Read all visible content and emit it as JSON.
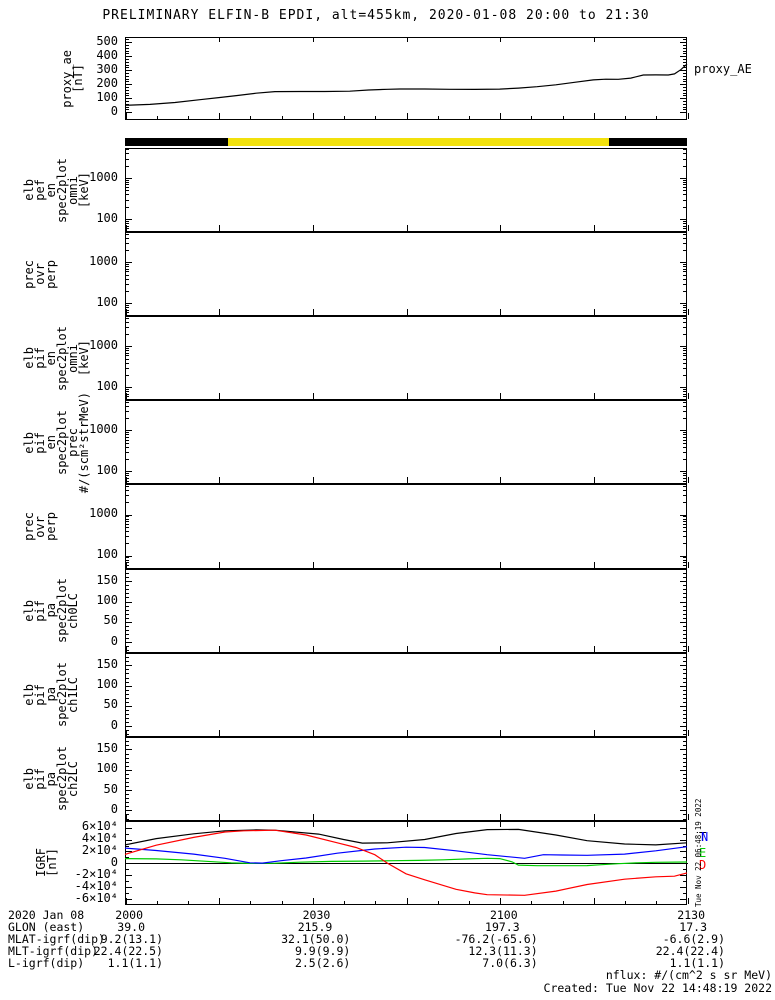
{
  "title": "PRELIMINARY ELFIN-B EPDI, alt=455km, 2020-01-08 20:00 to 21:30",
  "proxy": {
    "right_label": "proxy_AE",
    "axis_label": [
      "proxy_ae",
      "[nT]"
    ],
    "yticks": [
      "500",
      "400",
      "300",
      "200",
      "100",
      "0"
    ]
  },
  "status_bar": {
    "segments": [
      {
        "color": "#000000",
        "from": 0.0,
        "to": 0.183
      },
      {
        "color": "#f2e10c",
        "from": 0.183,
        "to": 0.861
      },
      {
        "color": "#000000",
        "from": 0.861,
        "to": 1.0
      }
    ]
  },
  "spectro_panels": [
    {
      "labels": [
        "elb",
        "pef",
        "en",
        "spec2plot",
        "omni",
        "[keV]"
      ],
      "scale": "log",
      "yticks": [
        "1000",
        "100"
      ]
    },
    {
      "labels": [
        "prec",
        "ovr",
        "perp"
      ],
      "scale": "log",
      "yticks": [
        "1000",
        "100"
      ]
    },
    {
      "labels": [
        "elb",
        "pif",
        "en",
        "spec2plot",
        "omni",
        "[keV]"
      ],
      "scale": "log",
      "yticks": [
        "1000",
        "100"
      ]
    },
    {
      "labels": [
        "elb",
        "pif",
        "en",
        "spec2plot",
        "prec",
        "#/(scm²strMeV)"
      ],
      "scale": "log",
      "yticks": [
        "1000",
        "100"
      ]
    },
    {
      "labels": [
        "prec",
        "ovr",
        "perp"
      ],
      "scale": "log",
      "yticks": [
        "1000",
        "100"
      ]
    },
    {
      "labels": [
        "elb",
        "pif",
        "pa",
        "spec2plot",
        "ch0LC"
      ],
      "scale": "linear",
      "yticks": [
        "150",
        "100",
        "50",
        "0"
      ]
    },
    {
      "labels": [
        "elb",
        "pif",
        "pa",
        "spec2plot",
        "ch1LC"
      ],
      "scale": "linear",
      "yticks": [
        "150",
        "100",
        "50",
        "0"
      ]
    },
    {
      "labels": [
        "elb",
        "pif",
        "pa",
        "spec2plot",
        "ch2LC"
      ],
      "scale": "linear",
      "yticks": [
        "150",
        "100",
        "50",
        "0"
      ]
    }
  ],
  "igrf": {
    "axis_label": [
      "IGRF",
      "[nT]"
    ],
    "yticks": [
      "6×10⁴",
      "4×10⁴",
      "2×10⁴",
      "0",
      "-2×10⁴",
      "-4×10⁴",
      "-6×10⁴"
    ],
    "legend": [
      {
        "label": "T",
        "color": "#000000"
      },
      {
        "label": "N",
        "color": "#0000ff"
      },
      {
        "label": "E",
        "color": "#00cc00"
      },
      {
        "label": "D",
        "color": "#ff0000"
      }
    ],
    "side_note": "Tue Nov 22 06:48:19 2022"
  },
  "ephemeris": {
    "row_labels": [
      "2020 Jan 08",
      "GLON (east)",
      "MLAT-igrf(dip)",
      "MLT-igrf(dip)",
      "L-igrf(dip)"
    ],
    "columns": [
      [
        "2000",
        "39.0",
        "9.2(13.1)",
        "22.4(22.5)",
        "1.1(1.1)"
      ],
      [
        "2030",
        "215.9",
        "32.1(50.0)",
        "9.9(9.9)",
        "2.5(2.6)"
      ],
      [
        "2100",
        "197.3",
        "-76.2(-65.6)",
        "12.3(11.3)",
        "7.0(6.3)"
      ],
      [
        "2130",
        "17.3",
        "-6.6(2.9)",
        "22.4(22.4)",
        "1.1(1.1)"
      ]
    ]
  },
  "footer": {
    "line1": "nflux: #/(cm^2 s sr MeV)",
    "line2": "Created: Tue Nov 22 14:48:19 2022"
  },
  "chart_data": [
    {
      "type": "line",
      "title": "proxy_AE",
      "ylabel": "proxy_ae [nT]",
      "ylim": [
        0,
        500
      ],
      "xlim": [
        0,
        90
      ],
      "x_unit": "minutes after 2020-01-08 20:00 UT",
      "xticks_minutes": [
        0,
        30,
        60,
        90
      ],
      "xtick_labels": [
        "2000",
        "2030",
        "2100",
        "2130"
      ],
      "series": [
        {
          "name": "proxy_AE",
          "color": "#000000",
          "points": [
            [
              0,
              45
            ],
            [
              4,
              52
            ],
            [
              8,
              65
            ],
            [
              12,
              85
            ],
            [
              15,
              100
            ],
            [
              18,
              115
            ],
            [
              21,
              132
            ],
            [
              24,
              143
            ],
            [
              28,
              144
            ],
            [
              32,
              144
            ],
            [
              36,
              146
            ],
            [
              39,
              155
            ],
            [
              42,
              160
            ],
            [
              44,
              162
            ],
            [
              48,
              162
            ],
            [
              52,
              160
            ],
            [
              56,
              159
            ],
            [
              60,
              161
            ],
            [
              63,
              168
            ],
            [
              66,
              178
            ],
            [
              69,
              192
            ],
            [
              72,
              210
            ],
            [
              75,
              227
            ],
            [
              77,
              232
            ],
            [
              79,
              231
            ],
            [
              81,
              240
            ],
            [
              83,
              262
            ],
            [
              85,
              263
            ],
            [
              87,
              262
            ],
            [
              88,
              270
            ],
            [
              89,
              300
            ],
            [
              90,
              340
            ]
          ]
        }
      ]
    },
    {
      "type": "line",
      "title": "IGRF [nT]",
      "ylabel": "IGRF [nT]",
      "ylim": [
        -70000,
        70000
      ],
      "xlim": [
        0,
        90
      ],
      "x_unit": "minutes after 2020-01-08 20:00 UT",
      "series": [
        {
          "name": "T",
          "color": "#000000",
          "points": [
            [
              0,
              30500
            ],
            [
              5,
              41000
            ],
            [
              11,
              49000
            ],
            [
              16,
              54000
            ],
            [
              21,
              55500
            ],
            [
              24,
              55000
            ],
            [
              31,
              48500
            ],
            [
              35,
              39500
            ],
            [
              38,
              33500
            ],
            [
              42,
              34000
            ],
            [
              48,
              39500
            ],
            [
              53,
              49500
            ],
            [
              58,
              56000
            ],
            [
              63,
              56500
            ],
            [
              69,
              47000
            ],
            [
              74,
              37500
            ],
            [
              80,
              32000
            ],
            [
              85,
              30500
            ],
            [
              90,
              34000
            ]
          ]
        },
        {
          "name": "N",
          "color": "#0000ff",
          "points": [
            [
              0,
              25000
            ],
            [
              5,
              21000
            ],
            [
              11,
              15000
            ],
            [
              16,
              8000
            ],
            [
              20,
              500
            ],
            [
              22,
              0
            ],
            [
              25,
              4000
            ],
            [
              29,
              8500
            ],
            [
              34,
              16500
            ],
            [
              40,
              23500
            ],
            [
              45,
              26500
            ],
            [
              48,
              26000
            ],
            [
              53,
              20500
            ],
            [
              58,
              14000
            ],
            [
              64,
              8000
            ],
            [
              67,
              14000
            ],
            [
              70,
              13500
            ],
            [
              74,
              13000
            ],
            [
              80,
              15000
            ],
            [
              85,
              20500
            ],
            [
              90,
              27500
            ]
          ]
        },
        {
          "name": "E",
          "color": "#00cc00",
          "points": [
            [
              0,
              7500
            ],
            [
              5,
              7000
            ],
            [
              9,
              5500
            ],
            [
              13,
              3000
            ],
            [
              17,
              500
            ],
            [
              20,
              -500
            ],
            [
              24,
              -300
            ],
            [
              28,
              1500
            ],
            [
              33,
              2800
            ],
            [
              38,
              3300
            ],
            [
              43,
              4000
            ],
            [
              47,
              4500
            ],
            [
              51,
              5500
            ],
            [
              55,
              7000
            ],
            [
              58,
              8000
            ],
            [
              60,
              7500
            ],
            [
              62,
              2000
            ],
            [
              63,
              -3500
            ],
            [
              66,
              -4500
            ],
            [
              70,
              -4500
            ],
            [
              74,
              -4200
            ],
            [
              76,
              -3000
            ],
            [
              79,
              -1000
            ],
            [
              82,
              500
            ],
            [
              85,
              1200
            ],
            [
              90,
              1800
            ]
          ]
        },
        {
          "name": "D",
          "color": "#ff0000",
          "points": [
            [
              0,
              14500
            ],
            [
              5,
              30000
            ],
            [
              11,
              43000
            ],
            [
              16,
              52000
            ],
            [
              19,
              54000
            ],
            [
              24,
              55000
            ],
            [
              29,
              47000
            ],
            [
              34,
              34000
            ],
            [
              37,
              26000
            ],
            [
              40,
              14000
            ],
            [
              42,
              0
            ],
            [
              45,
              -18000
            ],
            [
              48,
              -28000
            ],
            [
              53,
              -44000
            ],
            [
              56,
              -50000
            ],
            [
              58,
              -53000
            ],
            [
              64,
              -54000
            ],
            [
              69,
              -47000
            ],
            [
              74,
              -36000
            ],
            [
              80,
              -27000
            ],
            [
              85,
              -23000
            ],
            [
              88,
              -22000
            ],
            [
              90,
              -16500
            ]
          ]
        }
      ]
    },
    {
      "type": "spectrogram",
      "note": "eight stacked panels shown with axes only - no flux data plotted",
      "panels": [
        "elb pef en spec2plot omni [keV]",
        "prec ovr perp",
        "elb pif en spec2plot omni [keV]",
        "elb pif en spec2plot prec #/(scm²strMeV)",
        "prec ovr perp",
        "elb pif pa spec2plot ch0LC",
        "elb pif pa spec2plot ch1LC",
        "elb pif pa spec2plot ch2LC"
      ]
    }
  ]
}
